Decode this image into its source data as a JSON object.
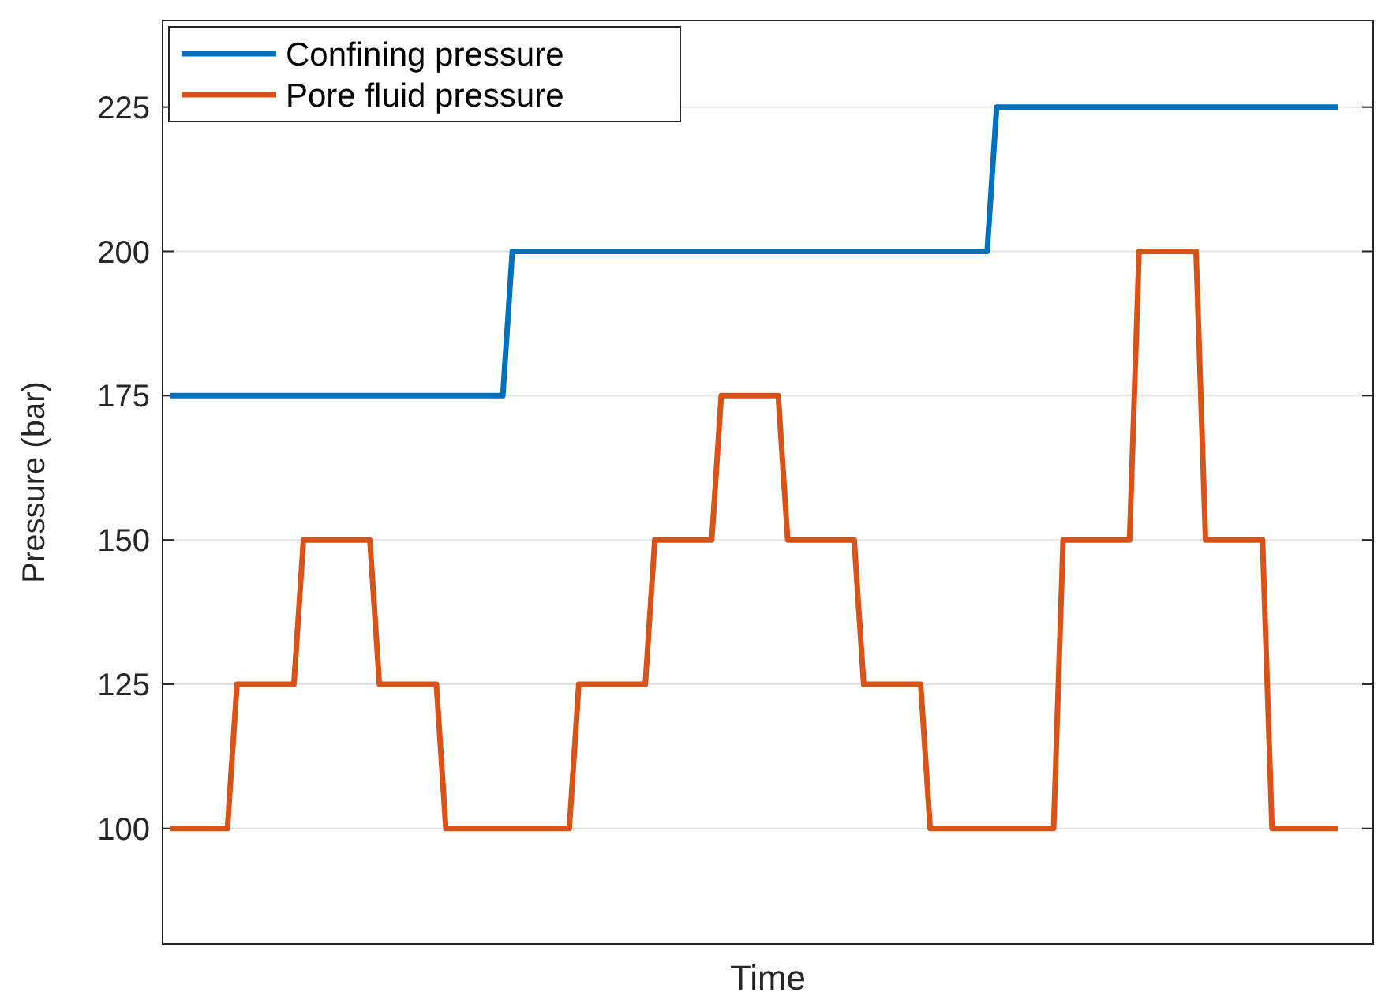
{
  "chart_data": {
    "type": "line",
    "xlabel": "Time",
    "ylabel": "Pressure (bar)",
    "categories": [
      null,
      null,
      null,
      null,
      null,
      null,
      null,
      null,
      null,
      null,
      null,
      null,
      null,
      null,
      null,
      null,
      null,
      null,
      null,
      null,
      null,
      null,
      null,
      null,
      null,
      null,
      null,
      null,
      null,
      null,
      null,
      null,
      null,
      null,
      null,
      null,
      null,
      null,
      null,
      null,
      null,
      null,
      null,
      null,
      null,
      null,
      null,
      null,
      null,
      null,
      null,
      null,
      null,
      null,
      null,
      null,
      null,
      null,
      null,
      null,
      null,
      null,
      null,
      null,
      null,
      null,
      null,
      null,
      null,
      null,
      null,
      null,
      null,
      null,
      null,
      null,
      null,
      null,
      null,
      null,
      null,
      null,
      null,
      null,
      null,
      null,
      null,
      null,
      null,
      null,
      null,
      null,
      null,
      null,
      null,
      null,
      null,
      null,
      null,
      null,
      null,
      null,
      null,
      null,
      null,
      null,
      null,
      null,
      null,
      null,
      null,
      null,
      null,
      null,
      null,
      null,
      null,
      null,
      null,
      null,
      null,
      null,
      null,
      null
    ],
    "ylim": [
      80,
      240
    ],
    "yticks": [
      100,
      125,
      150,
      175,
      200,
      225
    ],
    "grid": "y",
    "legend": "top left",
    "line_style": "solid",
    "series": [
      {
        "name": "Confining pressure",
        "color": "#0072bd",
        "values": [
          175,
          175,
          175,
          175,
          175,
          175,
          175,
          175,
          175,
          175,
          175,
          175,
          175,
          175,
          175,
          175,
          175,
          175,
          175,
          175,
          175,
          175,
          175,
          175,
          175,
          175,
          175,
          175,
          175,
          175,
          175,
          175,
          175,
          175,
          175,
          175,
          200,
          200,
          200,
          200,
          200,
          200,
          200,
          200,
          200,
          200,
          200,
          200,
          200,
          200,
          200,
          200,
          200,
          200,
          200,
          200,
          200,
          200,
          200,
          200,
          200,
          200,
          200,
          200,
          200,
          200,
          200,
          200,
          200,
          200,
          200,
          200,
          200,
          200,
          200,
          200,
          200,
          200,
          200,
          200,
          200,
          200,
          200,
          200,
          200,
          200,
          200,
          225,
          225,
          225,
          225,
          225,
          225,
          225,
          225,
          225,
          225,
          225,
          225,
          225,
          225,
          225,
          225,
          225,
          225,
          225,
          225,
          225,
          225,
          225,
          225,
          225,
          225,
          225,
          225,
          225,
          225,
          225,
          225,
          225,
          225,
          225,
          225,
          225
        ]
      },
      {
        "name": "Pore fluid pressure",
        "color": "#d95319",
        "values": [
          100,
          100,
          100,
          100,
          100,
          100,
          100,
          125,
          125,
          125,
          125,
          125,
          125,
          125,
          150,
          150,
          150,
          150,
          150,
          150,
          150,
          150,
          125,
          125,
          125,
          125,
          125,
          125,
          125,
          100,
          100,
          100,
          100,
          100,
          100,
          100,
          100,
          100,
          100,
          100,
          100,
          100,
          100,
          125,
          125,
          125,
          125,
          125,
          125,
          125,
          125,
          150,
          150,
          150,
          150,
          150,
          150,
          150,
          175,
          175,
          175,
          175,
          175,
          175,
          175,
          150,
          150,
          150,
          150,
          150,
          150,
          150,
          150,
          125,
          125,
          125,
          125,
          125,
          125,
          125,
          100,
          100,
          100,
          100,
          100,
          100,
          100,
          100,
          100,
          100,
          100,
          100,
          100,
          100,
          150,
          150,
          150,
          150,
          150,
          150,
          150,
          150,
          200,
          200,
          200,
          200,
          200,
          200,
          200,
          150,
          150,
          150,
          150,
          150,
          150,
          150,
          100,
          100,
          100,
          100,
          100,
          100,
          100,
          100
        ]
      }
    ]
  }
}
